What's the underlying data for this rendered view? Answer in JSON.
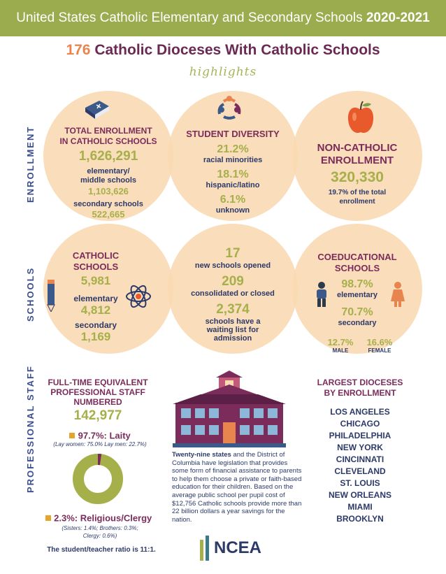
{
  "banner": {
    "title_main": "United States Catholic Elementary and Secondary Schools",
    "title_year": "2020-2021"
  },
  "subtitle": {
    "number": "176",
    "text": "Catholic Dioceses With Catholic Schools"
  },
  "highlights": "highlights",
  "side_labels": {
    "enrollment": "ENROLLMENT",
    "schools": "SCHOOLS",
    "staff": "PROFESSIONAL STAFF"
  },
  "total_enrollment": {
    "heading": "TOTAL ENROLLMENT\nIN CATHOLIC SCHOOLS",
    "total": "1,626,291",
    "elem_label": "elementary/\nmiddle schools",
    "elem_value": "1,103,626",
    "sec_label": "secondary schools",
    "sec_value": "522,665"
  },
  "diversity": {
    "heading": "STUDENT DIVERSITY",
    "items": [
      {
        "value": "21.2%",
        "label": "racial minorities"
      },
      {
        "value": "18.1%",
        "label": "hispanic/latino"
      },
      {
        "value": "6.1%",
        "label": "unknown"
      }
    ]
  },
  "non_catholic": {
    "heading": "NON-CATHOLIC\nENROLLMENT",
    "value": "320,330",
    "note": "19.7% of the total\nenrollment"
  },
  "catholic_schools": {
    "heading": "CATHOLIC\nSCHOOLS",
    "total": "5,981",
    "elem_label": "elementary",
    "elem_value": "4,812",
    "sec_label": "secondary",
    "sec_value": "1,169"
  },
  "new_schools": {
    "opened_value": "17",
    "opened_label": "new schools opened",
    "closed_value": "209",
    "closed_label": "consolidated or closed",
    "waiting_value": "2,374",
    "waiting_label": "schools have a\nwaiting list for\nadmission"
  },
  "coed": {
    "heading": "COEDUCATIONAL\nSCHOOLS",
    "elem_value": "98.7%",
    "elem_label": "elementary",
    "sec_value": "70.7%",
    "sec_label": "secondary",
    "male_value": "12.7%",
    "male_label": "MALE",
    "female_value": "16.6%",
    "female_label": "FEMALE"
  },
  "staff": {
    "heading": "FULL-TIME EQUIVALENT\nPROFESSIONAL STAFF\nNUMBERED",
    "total": "142,977",
    "laity_label": "97.7%: Laity",
    "laity_note": "(Lay women: 75.0% Lay men: 22.7%)",
    "religious_label": "2.3%: Religious/Clergy",
    "religious_note": "(Sisters: 1.4%; Brothers: 0.3%;\nClergy: 0.6%)",
    "ratio": "The student/teacher ratio is 11:1.",
    "laity_fraction": 0.977,
    "colors": {
      "laity": "#a6b04a",
      "religious": "#7b2c5b"
    }
  },
  "legislation": {
    "bold": "Twenty-nine states",
    "text": " and the District of Columbia have legislation that provides some form of financial assistance to parents to help them choose a private or faith-based education for their children. Based on the average public school per pupil cost of $12,756 Catholic schools provide more than 22 billion dollars a year savings for the nation."
  },
  "logo": "NCEA",
  "dioceses": {
    "heading": "LARGEST DIOCESES\nBY ENROLLMENT",
    "items": [
      "LOS ANGELES",
      "CHICAGO",
      "PHILADELPHIA",
      "NEW YORK",
      "CINCINNATI",
      "CLEVELAND",
      "ST. LOUIS",
      "NEW ORLEANS",
      "MIAMI",
      "BROOKLYN"
    ]
  },
  "colors": {
    "banner": "#9aac4e",
    "circle": "#fad9b3",
    "heading": "#7b2c5b",
    "value": "#a6b04a",
    "text": "#2c3a6a"
  }
}
